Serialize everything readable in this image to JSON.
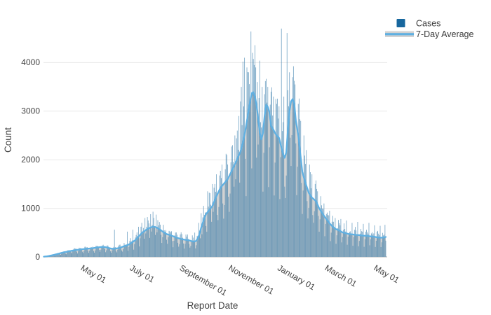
{
  "chart_data": {
    "type": "bar+line",
    "title": "",
    "xlabel": "Report Date",
    "ylabel": "Count",
    "x_axis": {
      "start_date": "2020-03-01",
      "end_date": "2021-05-01",
      "range_days": [
        0,
        426
      ]
    },
    "yticks": [
      0,
      1000,
      2000,
      3000,
      4000
    ],
    "ytick_labels": [
      "0",
      "1000",
      "2000",
      "3000",
      "4000"
    ],
    "ylim": [
      0,
      4750
    ],
    "xticks": [
      {
        "label": "May 01",
        "day": 61
      },
      {
        "label": "July 01",
        "day": 122
      },
      {
        "label": "September 01",
        "day": 184
      },
      {
        "label": "November 01",
        "day": 245
      },
      {
        "label": "January 01",
        "day": 306
      },
      {
        "label": "March 01",
        "day": 365
      },
      {
        "label": "May 01",
        "day": 426
      }
    ],
    "legend": {
      "position": "top-right",
      "items": [
        {
          "label": "Cases",
          "swatch": "square"
        },
        {
          "label": "7-Day Average",
          "swatch": "line-on-band"
        }
      ]
    },
    "colors": {
      "bar": "#17679e",
      "bar_opacity": 0.55,
      "line": "#5fb0e2",
      "area": "#d2d2d2",
      "grid": "#e9e9e9",
      "zeroline": "#cccccc",
      "text": "#444444"
    },
    "series": [
      {
        "name": "Cases",
        "type": "bar",
        "note": "daily reported case counts, values derived from avg_anchors × weekday_pattern with spike_bars overrides"
      },
      {
        "name": "7-Day Average",
        "type": "line+area",
        "note": "7-day rolling average, anchor points below as [day_offset, value]"
      }
    ],
    "avg_anchors": [
      [
        0,
        5
      ],
      [
        4,
        12
      ],
      [
        7,
        22
      ],
      [
        10,
        32
      ],
      [
        14,
        48
      ],
      [
        18,
        65
      ],
      [
        21,
        78
      ],
      [
        25,
        95
      ],
      [
        31,
        115
      ],
      [
        36,
        130
      ],
      [
        40,
        142
      ],
      [
        45,
        152
      ],
      [
        50,
        162
      ],
      [
        55,
        170
      ],
      [
        61,
        180
      ],
      [
        65,
        190
      ],
      [
        68,
        198
      ],
      [
        72,
        205
      ],
      [
        76,
        204
      ],
      [
        80,
        188
      ],
      [
        85,
        166
      ],
      [
        88,
        168
      ],
      [
        92,
        178
      ],
      [
        96,
        195
      ],
      [
        99,
        215
      ],
      [
        103,
        235
      ],
      [
        107,
        265
      ],
      [
        110,
        300
      ],
      [
        114,
        345
      ],
      [
        118,
        420
      ],
      [
        122,
        490
      ],
      [
        126,
        540
      ],
      [
        129,
        575
      ],
      [
        133,
        605
      ],
      [
        136,
        625
      ],
      [
        139,
        615
      ],
      [
        141,
        600
      ],
      [
        145,
        560
      ],
      [
        148,
        520
      ],
      [
        151,
        490
      ],
      [
        153,
        470
      ],
      [
        157,
        450
      ],
      [
        160,
        432
      ],
      [
        164,
        405
      ],
      [
        167,
        388
      ],
      [
        171,
        370
      ],
      [
        174,
        358
      ],
      [
        178,
        348
      ],
      [
        181,
        340
      ],
      [
        184,
        325
      ],
      [
        186,
        315
      ],
      [
        188,
        318
      ],
      [
        190,
        332
      ],
      [
        193,
        420
      ],
      [
        196,
        600
      ],
      [
        199,
        750
      ],
      [
        202,
        880
      ],
      [
        206,
        960
      ],
      [
        210,
        1050
      ],
      [
        215,
        1250
      ],
      [
        220,
        1420
      ],
      [
        224,
        1500
      ],
      [
        229,
        1600
      ],
      [
        235,
        1800
      ],
      [
        240,
        1980
      ],
      [
        245,
        2170
      ],
      [
        248,
        2350
      ],
      [
        251,
        2600
      ],
      [
        254,
        2900
      ],
      [
        257,
        3200
      ],
      [
        259,
        3370
      ],
      [
        261,
        3390
      ],
      [
        263,
        3300
      ],
      [
        265,
        3120
      ],
      [
        267,
        2850
      ],
      [
        269,
        2550
      ],
      [
        271,
        2420
      ],
      [
        273,
        2550
      ],
      [
        275,
        2900
      ],
      [
        277,
        3130
      ],
      [
        279,
        3090
      ],
      [
        281,
        2980
      ],
      [
        283,
        2700
      ],
      [
        286,
        2620
      ],
      [
        288,
        2550
      ],
      [
        291,
        2480
      ],
      [
        293,
        2450
      ],
      [
        296,
        2250
      ],
      [
        298,
        2120
      ],
      [
        300,
        2040
      ],
      [
        302,
        2150
      ],
      [
        304,
        2600
      ],
      [
        306,
        3000
      ],
      [
        308,
        3200
      ],
      [
        310,
        3250
      ],
      [
        312,
        3150
      ],
      [
        314,
        2800
      ],
      [
        317,
        2500
      ],
      [
        319,
        2200
      ],
      [
        322,
        1750
      ],
      [
        326,
        1520
      ],
      [
        330,
        1320
      ],
      [
        334,
        1220
      ],
      [
        339,
        1150
      ],
      [
        343,
        1000
      ],
      [
        348,
        870
      ],
      [
        352,
        780
      ],
      [
        356,
        690
      ],
      [
        360,
        620
      ],
      [
        364,
        570
      ],
      [
        368,
        545
      ],
      [
        372,
        505
      ],
      [
        376,
        490
      ],
      [
        380,
        470
      ],
      [
        384,
        465
      ],
      [
        388,
        455
      ],
      [
        392,
        450
      ],
      [
        396,
        440
      ],
      [
        400,
        435
      ],
      [
        404,
        430
      ],
      [
        408,
        420
      ],
      [
        412,
        415
      ],
      [
        416,
        400
      ],
      [
        420,
        395
      ],
      [
        423,
        400
      ],
      [
        426,
        410
      ]
    ],
    "weekday_pattern": [
      0.52,
      0.78,
      1.16,
      1.24,
      1.18,
      1.08,
      0.74
    ],
    "spike_bars": [
      [
        88,
        560
      ],
      [
        104,
        520
      ],
      [
        111,
        560
      ],
      [
        118,
        620
      ],
      [
        122,
        700
      ],
      [
        126,
        800
      ],
      [
        129,
        820
      ],
      [
        133,
        880
      ],
      [
        136,
        930
      ],
      [
        140,
        870
      ],
      [
        188,
        500
      ],
      [
        193,
        700
      ],
      [
        196,
        900
      ],
      [
        199,
        1050
      ],
      [
        204,
        1350
      ],
      [
        210,
        1500
      ],
      [
        215,
        1700
      ],
      [
        222,
        1900
      ],
      [
        228,
        2100
      ],
      [
        235,
        2300
      ],
      [
        238,
        2500
      ],
      [
        241,
        2600
      ],
      [
        243,
        2900
      ],
      [
        245,
        3200
      ],
      [
        246,
        3500
      ],
      [
        248,
        4020
      ],
      [
        250,
        4100
      ],
      [
        253,
        3900
      ],
      [
        255,
        3800
      ],
      [
        258,
        4640
      ],
      [
        260,
        4200
      ],
      [
        262,
        3950
      ],
      [
        264,
        3900
      ],
      [
        266,
        3600
      ],
      [
        269,
        4040
      ],
      [
        272,
        3500
      ],
      [
        276,
        3620
      ],
      [
        279,
        3500
      ],
      [
        283,
        3400
      ],
      [
        286,
        3300
      ],
      [
        289,
        3250
      ],
      [
        293,
        3100
      ],
      [
        296,
        4700
      ],
      [
        299,
        3300
      ],
      [
        303,
        4610
      ],
      [
        306,
        3800
      ],
      [
        310,
        3700
      ],
      [
        313,
        3550
      ],
      [
        317,
        3150
      ],
      [
        320,
        2800
      ],
      [
        324,
        2500
      ],
      [
        327,
        2200
      ],
      [
        331,
        1900
      ],
      [
        334,
        1700
      ],
      [
        338,
        1500
      ],
      [
        341,
        1350
      ],
      [
        345,
        1250
      ],
      [
        349,
        1100
      ],
      [
        356,
        950
      ],
      [
        363,
        800
      ],
      [
        370,
        780
      ],
      [
        377,
        750
      ],
      [
        384,
        700
      ],
      [
        391,
        720
      ],
      [
        398,
        680
      ],
      [
        405,
        700
      ],
      [
        412,
        650
      ],
      [
        419,
        640
      ],
      [
        425,
        660
      ]
    ]
  }
}
